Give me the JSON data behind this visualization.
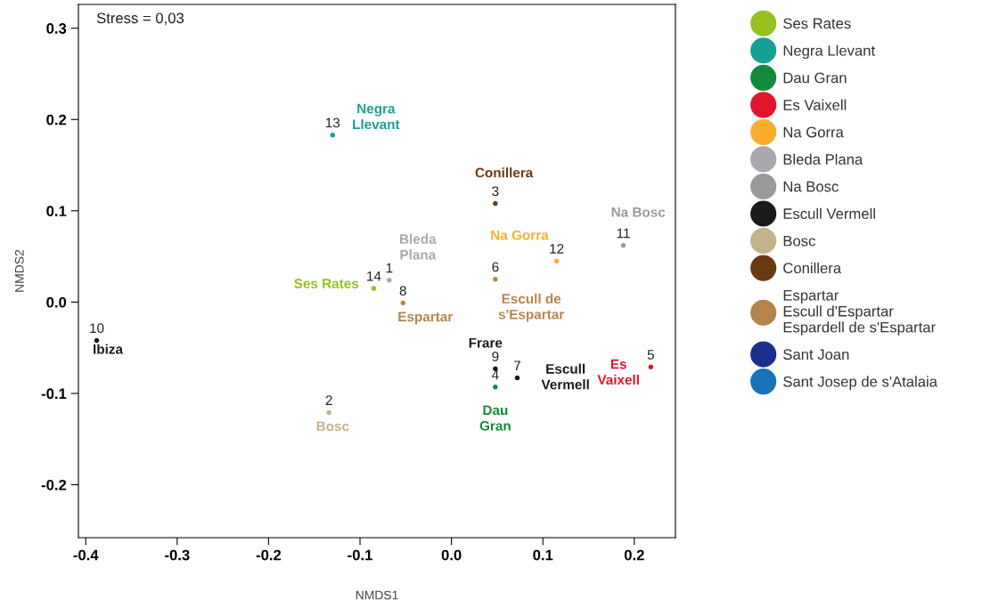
{
  "chart_data": {
    "type": "scatter",
    "xlabel": "NMDS1",
    "ylabel": "NMDS2",
    "xlim": [
      -0.408,
      0.245
    ],
    "ylim": [
      -0.258,
      0.326
    ],
    "xticks": [
      -0.4,
      -0.3,
      -0.2,
      -0.1,
      {
        "value": 0,
        "label": "0.0"
      },
      0.1,
      0.2
    ],
    "yticks": [
      -0.2,
      -0.1,
      {
        "value": 0,
        "label": "0.0"
      },
      0.1,
      0.2,
      0.3
    ],
    "grid": false,
    "legend": "right",
    "marker": "circle",
    "series": [
      {
        "name": "Ses Rates",
        "color": "#97c11f",
        "x": [
          -0.085
        ],
        "values": [
          0.015
        ]
      },
      {
        "name": "Negra Llevant",
        "color": "#16a096",
        "x": [
          -0.13
        ],
        "values": [
          0.183
        ]
      },
      {
        "name": "Dau Gran",
        "color": "#138a3a",
        "x": [
          0.048
        ],
        "values": [
          -0.093
        ]
      },
      {
        "name": "Es Vaixell",
        "color": "#e2162b",
        "x": [
          0.218
        ],
        "values": [
          -0.071
        ]
      },
      {
        "name": "Na Gorra",
        "color": "#f9ae2f",
        "x": [
          0.115
        ],
        "values": [
          0.045
        ]
      },
      {
        "name": "Bleda Plana",
        "color": "#a9a9ad",
        "x": [
          -0.068
        ],
        "values": [
          0.024
        ]
      },
      {
        "name": "Na Bosc",
        "color": "#9a9a9a",
        "x": [
          0.188
        ],
        "values": [
          0.062
        ]
      },
      {
        "name": "Escull Vermell",
        "color": "#1a1a1a",
        "x": [
          0.072
        ],
        "values": [
          -0.083
        ]
      },
      {
        "name": "Bosc",
        "color": "#c2b28c",
        "x": [
          -0.134
        ],
        "values": [
          -0.121
        ]
      },
      {
        "name": "Conillera",
        "color": "#6b3a12",
        "x": [
          0.048
        ],
        "values": [
          0.108
        ]
      },
      {
        "name": "Espartar\nEscull d'Espartar\nEspardell de s'Espartar",
        "color": "#b5844c",
        "x": [
          -0.053,
          0.048
        ],
        "values": [
          -0.001,
          0.025
        ]
      },
      {
        "name": "Sant Joan",
        "color": "#1a2f8a"
      },
      {
        "name": "Sant Josep de s'Atalaia",
        "color": "#1873b8"
      },
      {
        "color": "#1a1a1a",
        "x": [
          0.048,
          -0.388
        ],
        "values": [
          -0.073,
          -0.042
        ]
      }
    ],
    "annotations": [
      "Stress = 0,03",
      {
        "text": "1",
        "x": -0.068,
        "y": 0.024
      },
      {
        "text": "2",
        "x": -0.134,
        "y": -0.121
      },
      {
        "text": "3",
        "x": 0.048,
        "y": 0.108
      },
      {
        "text": "4",
        "x": 0.048,
        "y": -0.093
      },
      {
        "text": "5",
        "x": 0.218,
        "y": -0.071
      },
      {
        "text": "6",
        "x": 0.048,
        "y": 0.025
      },
      {
        "text": "7",
        "x": 0.072,
        "y": -0.083
      },
      {
        "text": "8",
        "x": -0.053,
        "y": -0.001
      },
      {
        "text": "9",
        "x": 0.048,
        "y": -0.073
      },
      {
        "text": "10",
        "x": -0.388,
        "y": -0.042
      },
      {
        "text": "11",
        "x": 0.188,
        "y": 0.062
      },
      {
        "text": "12",
        "x": 0.115,
        "y": 0.045
      },
      {
        "text": "13",
        "x": -0.13,
        "y": 0.183
      },
      {
        "text": "14",
        "x": -0.085,
        "y": 0.015
      },
      {
        "text": "Bleda\nPlana",
        "x": -0.068,
        "y": 0.024
      },
      {
        "text": "Bosc",
        "x": -0.134,
        "y": -0.121
      },
      {
        "text": "Conillera",
        "x": 0.048,
        "y": 0.108
      },
      {
        "text": "Dau\nGran",
        "x": 0.048,
        "y": -0.093
      },
      {
        "text": "Es\nVaixell",
        "x": 0.218,
        "y": -0.071
      },
      {
        "text": "Escull de\ns'Espartar",
        "x": 0.048,
        "y": 0.025
      },
      {
        "text": "Escull\nVermell",
        "x": 0.072,
        "y": -0.083
      },
      {
        "text": "Espartar",
        "x": -0.053,
        "y": -0.001
      },
      {
        "text": "Frare",
        "x": 0.048,
        "y": -0.073
      },
      {
        "text": "Ibiza",
        "x": -0.388,
        "y": -0.042
      },
      {
        "text": "Na Bosc",
        "x": 0.188,
        "y": 0.062
      },
      {
        "text": "Na Gorra",
        "x": 0.115,
        "y": 0.045
      },
      {
        "text": "Negra\nLlevant",
        "x": -0.13,
        "y": 0.183
      },
      {
        "text": "Ses Rates",
        "x": -0.085,
        "y": 0.015
      }
    ]
  }
}
